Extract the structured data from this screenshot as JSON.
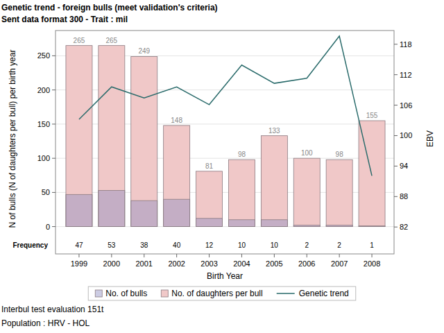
{
  "chart_data": {
    "type": "bar",
    "title": "Genetic trend - foreign bulls (meet validation's criteria)",
    "subtitle": "Sent data format 300 - Trait : mil",
    "categories": [
      "1999",
      "2000",
      "2001",
      "2002",
      "2003",
      "2004",
      "2005",
      "2006",
      "2007",
      "2008"
    ],
    "x_label": "Birth Year",
    "y_label": "N of bulls (N of daughters per bull) per birth year",
    "y2_label": "EBV",
    "frequency_label": "Frequency",
    "footer": [
      "Interbul test evaluation 151t",
      "Population : HRV - HOL"
    ],
    "series": [
      {
        "name": "No. of bulls",
        "type": "bar",
        "color": "#8f8fc0",
        "data_labels": true,
        "values": [
          47,
          53,
          38,
          40,
          12,
          10,
          10,
          2,
          2,
          1
        ]
      },
      {
        "name": "No. of daughters per bull",
        "type": "bar",
        "color": "#f0c8c8",
        "data_labels": true,
        "values": [
          265,
          265,
          249,
          148,
          81,
          98,
          133,
          100,
          98,
          155
        ]
      },
      {
        "name": "Genetic trend",
        "type": "line",
        "axis": "y2",
        "color": "#2a6b6b",
        "values": [
          103.2,
          109.6,
          107.4,
          109.6,
          106.1,
          113.9,
          110.3,
          111.3,
          119.6,
          92.1
        ]
      }
    ],
    "ylim": [
      -40,
      287
    ],
    "yticks": [
      0,
      50,
      100,
      150,
      200,
      250
    ],
    "y2lim": [
      76.7,
      120.7
    ],
    "y2ticks": [
      82,
      88,
      94,
      100,
      106,
      112,
      118
    ],
    "grid": true,
    "legend": "bottom"
  }
}
